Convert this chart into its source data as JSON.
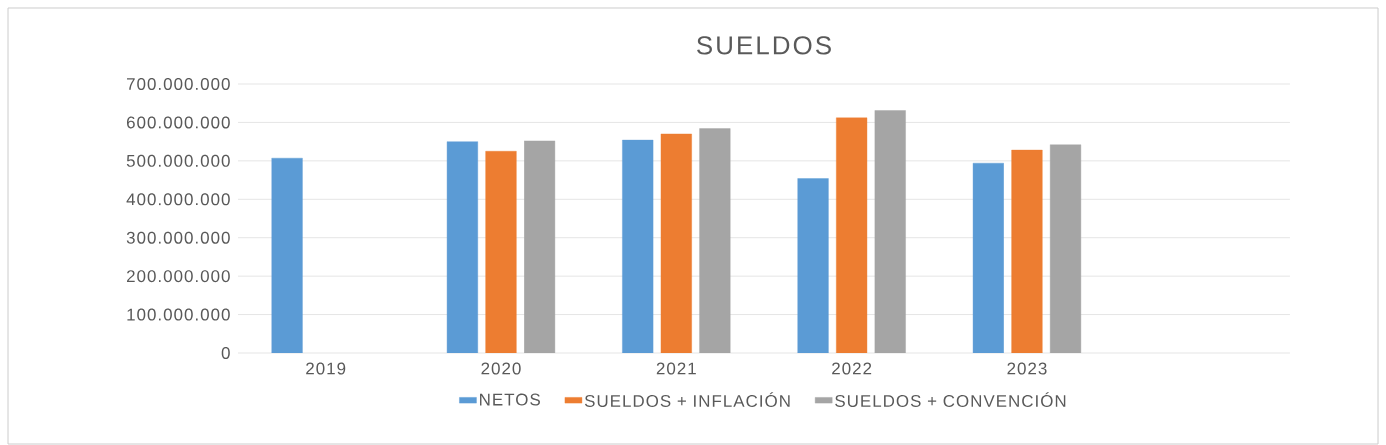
{
  "chart_data": {
    "type": "bar",
    "title": "SUELDOS",
    "categories": [
      "2019",
      "2020",
      "2021",
      "2022",
      "2023",
      null
    ],
    "series": [
      {
        "name": "NETOS",
        "color": "#5b9bd5",
        "values": [
          507000000,
          550000000,
          554000000,
          454000000,
          494000000,
          null
        ]
      },
      {
        "name": "SUELDOS + INFLACIÓN",
        "color": "#ed7d31",
        "values": [
          null,
          525000000,
          570000000,
          612000000,
          528000000,
          null
        ]
      },
      {
        "name": "SUELDOS + CONVENCIÓN",
        "color": "#a5a5a5",
        "values": [
          null,
          552000000,
          584000000,
          631000000,
          542000000,
          null
        ]
      }
    ],
    "ylim": [
      0,
      700000000
    ],
    "yticks": [
      {
        "value": 0,
        "label": "0"
      },
      {
        "value": 100000000,
        "label": "100.000.000"
      },
      {
        "value": 200000000,
        "label": "200.000.000"
      },
      {
        "value": 300000000,
        "label": "300.000.000"
      },
      {
        "value": 400000000,
        "label": "400.000.000"
      },
      {
        "value": 500000000,
        "label": "500.000.000"
      },
      {
        "value": 600000000,
        "label": "600.000.000"
      },
      {
        "value": 700000000,
        "label": "700.000.000"
      }
    ],
    "grid": "y",
    "legend": "bottom"
  }
}
